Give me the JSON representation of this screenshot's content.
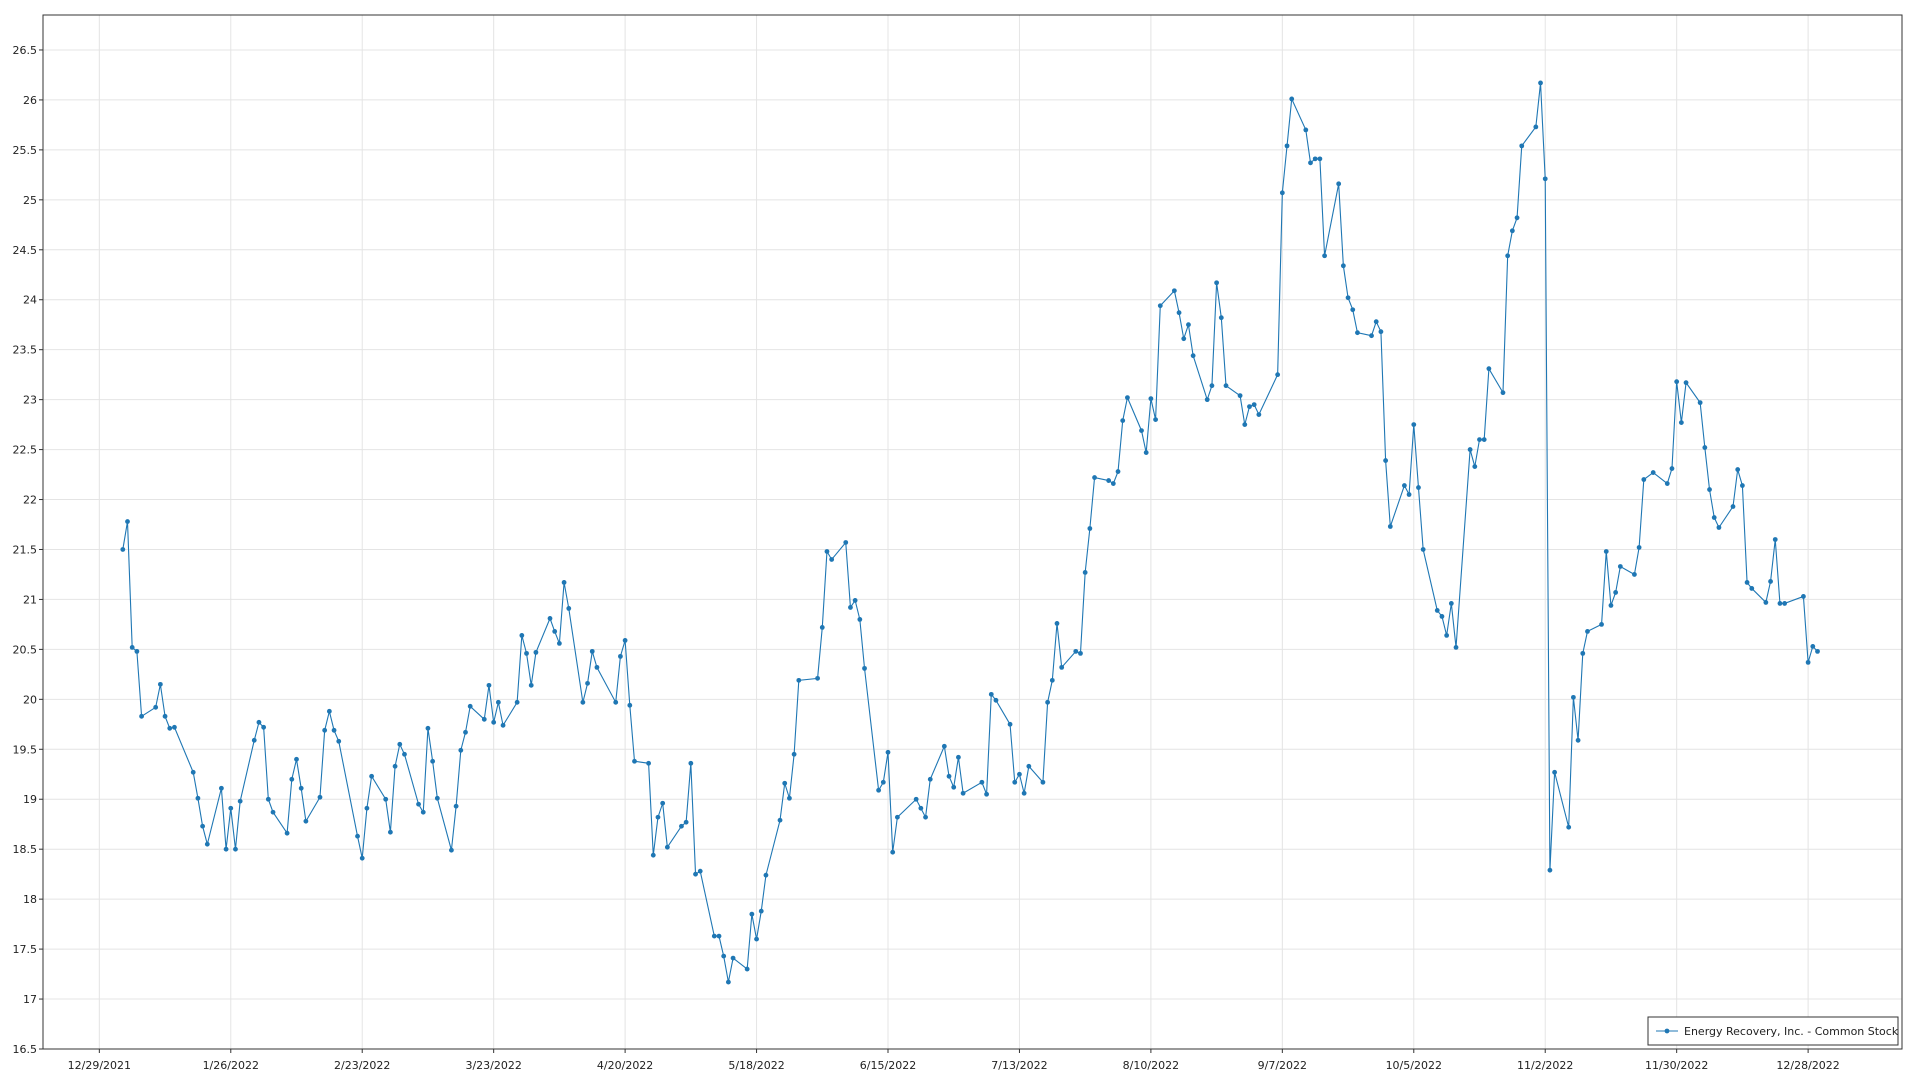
{
  "chart_data": {
    "type": "line",
    "legend": "lower right",
    "grid": true,
    "xlim": [
      "2021-12-17",
      "2023-01-17"
    ],
    "xticks": [
      {
        "value": "2021-12-29",
        "label": "12/29/2021"
      },
      {
        "value": "2022-01-26",
        "label": "1/26/2022"
      },
      {
        "value": "2022-02-23",
        "label": "2/23/2022"
      },
      {
        "value": "2022-03-23",
        "label": "3/23/2022"
      },
      {
        "value": "2022-04-20",
        "label": "4/20/2022"
      },
      {
        "value": "2022-05-18",
        "label": "5/18/2022"
      },
      {
        "value": "2022-06-15",
        "label": "6/15/2022"
      },
      {
        "value": "2022-07-13",
        "label": "7/13/2022"
      },
      {
        "value": "2022-08-10",
        "label": "8/10/2022"
      },
      {
        "value": "2022-09-07",
        "label": "9/7/2022"
      },
      {
        "value": "2022-10-05",
        "label": "10/5/2022"
      },
      {
        "value": "2022-11-02",
        "label": "11/2/2022"
      },
      {
        "value": "2022-11-30",
        "label": "11/30/2022"
      },
      {
        "value": "2022-12-28",
        "label": "12/28/2022"
      }
    ],
    "ylim": [
      16.5,
      26.85
    ],
    "yticks": [
      16.5,
      17,
      17.5,
      18,
      18.5,
      19,
      19.5,
      20,
      20.5,
      21,
      21.5,
      22,
      22.5,
      23,
      23.5,
      24,
      24.5,
      25,
      25.5,
      26,
      26.5
    ],
    "x": [
      "2022-01-03",
      "2022-01-04",
      "2022-01-05",
      "2022-01-06",
      "2022-01-07",
      "2022-01-10",
      "2022-01-11",
      "2022-01-12",
      "2022-01-13",
      "2022-01-14",
      "2022-01-18",
      "2022-01-19",
      "2022-01-20",
      "2022-01-21",
      "2022-01-24",
      "2022-01-25",
      "2022-01-26",
      "2022-01-27",
      "2022-01-28",
      "2022-01-31",
      "2022-02-01",
      "2022-02-02",
      "2022-02-03",
      "2022-02-04",
      "2022-02-07",
      "2022-02-08",
      "2022-02-09",
      "2022-02-10",
      "2022-02-11",
      "2022-02-14",
      "2022-02-15",
      "2022-02-16",
      "2022-02-17",
      "2022-02-18",
      "2022-02-22",
      "2022-02-23",
      "2022-02-24",
      "2022-02-25",
      "2022-02-28",
      "2022-03-01",
      "2022-03-02",
      "2022-03-03",
      "2022-03-04",
      "2022-03-07",
      "2022-03-08",
      "2022-03-09",
      "2022-03-10",
      "2022-03-11",
      "2022-03-14",
      "2022-03-15",
      "2022-03-16",
      "2022-03-17",
      "2022-03-18",
      "2022-03-21",
      "2022-03-22",
      "2022-03-23",
      "2022-03-24",
      "2022-03-25",
      "2022-03-28",
      "2022-03-29",
      "2022-03-30",
      "2022-03-31",
      "2022-04-01",
      "2022-04-04",
      "2022-04-05",
      "2022-04-06",
      "2022-04-07",
      "2022-04-08",
      "2022-04-11",
      "2022-04-12",
      "2022-04-13",
      "2022-04-14",
      "2022-04-18",
      "2022-04-19",
      "2022-04-20",
      "2022-04-21",
      "2022-04-22",
      "2022-04-25",
      "2022-04-26",
      "2022-04-27",
      "2022-04-28",
      "2022-04-29",
      "2022-05-02",
      "2022-05-03",
      "2022-05-04",
      "2022-05-05",
      "2022-05-06",
      "2022-05-09",
      "2022-05-10",
      "2022-05-11",
      "2022-05-12",
      "2022-05-13",
      "2022-05-16",
      "2022-05-17",
      "2022-05-18",
      "2022-05-19",
      "2022-05-20",
      "2022-05-23",
      "2022-05-24",
      "2022-05-25",
      "2022-05-26",
      "2022-05-27",
      "2022-05-31",
      "2022-06-01",
      "2022-06-02",
      "2022-06-03",
      "2022-06-06",
      "2022-06-07",
      "2022-06-08",
      "2022-06-09",
      "2022-06-10",
      "2022-06-13",
      "2022-06-14",
      "2022-06-15",
      "2022-06-16",
      "2022-06-17",
      "2022-06-21",
      "2022-06-22",
      "2022-06-23",
      "2022-06-24",
      "2022-06-27",
      "2022-06-28",
      "2022-06-29",
      "2022-06-30",
      "2022-07-01",
      "2022-07-05",
      "2022-07-06",
      "2022-07-07",
      "2022-07-08",
      "2022-07-11",
      "2022-07-12",
      "2022-07-13",
      "2022-07-14",
      "2022-07-15",
      "2022-07-18",
      "2022-07-19",
      "2022-07-20",
      "2022-07-21",
      "2022-07-22",
      "2022-07-25",
      "2022-07-26",
      "2022-07-27",
      "2022-07-28",
      "2022-07-29",
      "2022-08-01",
      "2022-08-02",
      "2022-08-03",
      "2022-08-04",
      "2022-08-05",
      "2022-08-08",
      "2022-08-09",
      "2022-08-10",
      "2022-08-11",
      "2022-08-12",
      "2022-08-15",
      "2022-08-16",
      "2022-08-17",
      "2022-08-18",
      "2022-08-19",
      "2022-08-22",
      "2022-08-23",
      "2022-08-24",
      "2022-08-25",
      "2022-08-26",
      "2022-08-29",
      "2022-08-30",
      "2022-08-31",
      "2022-09-01",
      "2022-09-02",
      "2022-09-06",
      "2022-09-07",
      "2022-09-08",
      "2022-09-09",
      "2022-09-12",
      "2022-09-13",
      "2022-09-14",
      "2022-09-15",
      "2022-09-16",
      "2022-09-19",
      "2022-09-20",
      "2022-09-21",
      "2022-09-22",
      "2022-09-23",
      "2022-09-26",
      "2022-09-27",
      "2022-09-28",
      "2022-09-29",
      "2022-09-30",
      "2022-10-03",
      "2022-10-04",
      "2022-10-05",
      "2022-10-06",
      "2022-10-07",
      "2022-10-10",
      "2022-10-11",
      "2022-10-12",
      "2022-10-13",
      "2022-10-14",
      "2022-10-17",
      "2022-10-18",
      "2022-10-19",
      "2022-10-20",
      "2022-10-21",
      "2022-10-24",
      "2022-10-25",
      "2022-10-26",
      "2022-10-27",
      "2022-10-28",
      "2022-10-31",
      "2022-11-01",
      "2022-11-02",
      "2022-11-03",
      "2022-11-04",
      "2022-11-07",
      "2022-11-08",
      "2022-11-09",
      "2022-11-10",
      "2022-11-11",
      "2022-11-14",
      "2022-11-15",
      "2022-11-16",
      "2022-11-17",
      "2022-11-18",
      "2022-11-21",
      "2022-11-22",
      "2022-11-23",
      "2022-11-25",
      "2022-11-28",
      "2022-11-29",
      "2022-11-30",
      "2022-12-01",
      "2022-12-02",
      "2022-12-05",
      "2022-12-06",
      "2022-12-07",
      "2022-12-08",
      "2022-12-09",
      "2022-12-12",
      "2022-12-13",
      "2022-12-14",
      "2022-12-15",
      "2022-12-16",
      "2022-12-19",
      "2022-12-20",
      "2022-12-21",
      "2022-12-22",
      "2022-12-23",
      "2022-12-27",
      "2022-12-28",
      "2022-12-29",
      "2022-12-30"
    ],
    "series": [
      {
        "name": "Energy Recovery, Inc. - Common Stock",
        "color": "#1f77b4",
        "values": [
          21.5,
          21.78,
          20.52,
          20.48,
          19.83,
          19.92,
          20.15,
          19.83,
          19.71,
          19.72,
          19.27,
          19.01,
          18.73,
          18.55,
          19.11,
          18.5,
          18.91,
          18.5,
          18.98,
          19.59,
          19.77,
          19.72,
          19.0,
          18.87,
          18.66,
          19.2,
          19.4,
          19.11,
          18.78,
          19.02,
          19.69,
          19.88,
          19.69,
          19.58,
          18.63,
          18.41,
          18.91,
          19.23,
          19.0,
          18.67,
          19.33,
          19.55,
          19.45,
          18.95,
          18.87,
          19.71,
          19.38,
          19.01,
          18.49,
          18.93,
          19.49,
          19.67,
          19.93,
          19.8,
          20.14,
          19.77,
          19.97,
          19.74,
          19.97,
          20.64,
          20.46,
          20.14,
          20.47,
          20.81,
          20.68,
          20.56,
          21.17,
          20.91,
          19.97,
          20.16,
          20.48,
          20.32,
          19.97,
          20.43,
          20.59,
          19.94,
          19.38,
          19.36,
          18.44,
          18.82,
          18.96,
          18.52,
          18.73,
          18.77,
          19.36,
          18.25,
          18.28,
          17.63,
          17.63,
          17.43,
          17.17,
          17.41,
          17.3,
          17.85,
          17.6,
          17.88,
          18.24,
          18.79,
          19.16,
          19.01,
          19.45,
          20.19,
          20.21,
          20.72,
          21.48,
          21.4,
          21.57,
          20.92,
          20.99,
          20.8,
          20.31,
          19.09,
          19.17,
          19.47,
          18.47,
          18.82,
          19.0,
          18.91,
          18.82,
          19.2,
          19.53,
          19.23,
          19.12,
          19.42,
          19.06,
          19.17,
          19.05,
          20.05,
          19.99,
          19.75,
          19.17,
          19.25,
          19.06,
          19.33,
          19.17,
          19.97,
          20.19,
          20.76,
          20.32,
          20.48,
          20.46,
          21.27,
          21.71,
          22.22,
          22.19,
          22.16,
          22.28,
          22.79,
          23.02,
          22.69,
          22.47,
          23.01,
          22.8,
          23.94,
          24.09,
          23.87,
          23.61,
          23.75,
          23.44,
          23.0,
          23.14,
          24.17,
          23.82,
          23.14,
          23.04,
          22.75,
          22.93,
          22.95,
          22.85,
          23.25,
          25.07,
          25.54,
          26.01,
          25.7,
          25.37,
          25.41,
          25.41,
          24.44,
          25.16,
          24.34,
          24.02,
          23.9,
          23.67,
          23.64,
          23.78,
          23.68,
          22.39,
          21.73,
          22.14,
          22.05,
          22.75,
          22.12,
          21.5,
          20.89,
          20.83,
          20.64,
          20.96,
          20.52,
          22.5,
          22.33,
          22.6,
          22.6,
          23.31,
          23.07,
          24.44,
          24.69,
          24.82,
          25.54,
          25.73,
          26.17,
          25.21,
          18.29,
          19.27,
          18.72,
          20.02,
          19.59,
          20.46,
          20.68,
          20.75,
          21.48,
          20.94,
          21.07,
          21.33,
          21.25,
          21.52,
          22.2,
          22.27,
          22.16,
          22.31,
          23.18,
          22.77,
          23.17,
          22.97,
          22.52,
          22.1,
          21.82,
          21.72,
          21.93,
          22.3,
          22.14,
          21.17,
          21.11,
          20.97,
          21.18,
          21.6,
          20.96,
          20.96,
          21.03,
          20.37,
          20.53,
          20.48
        ]
      }
    ]
  }
}
